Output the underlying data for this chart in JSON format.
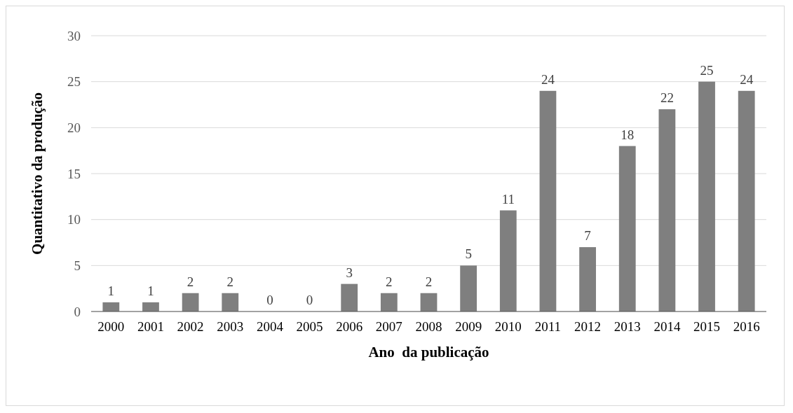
{
  "chart_data": {
    "type": "bar",
    "xlabel": "Ano  da publicação",
    "ylabel": "Quantitativo da produção",
    "categories": [
      "2000",
      "2001",
      "2002",
      "2003",
      "2004",
      "2005",
      "2006",
      "2007",
      "2008",
      "2009",
      "2010",
      "2011",
      "2012",
      "2013",
      "2014",
      "2015",
      "2016"
    ],
    "values": [
      1,
      1,
      2,
      2,
      0,
      0,
      3,
      2,
      2,
      5,
      11,
      24,
      7,
      18,
      22,
      25,
      24
    ],
    "color": "#7f7f7f",
    "ylim": [
      0,
      30
    ],
    "yticks": [
      0,
      5,
      10,
      15,
      20,
      25,
      30
    ],
    "grid": "y",
    "data_labels": true
  }
}
